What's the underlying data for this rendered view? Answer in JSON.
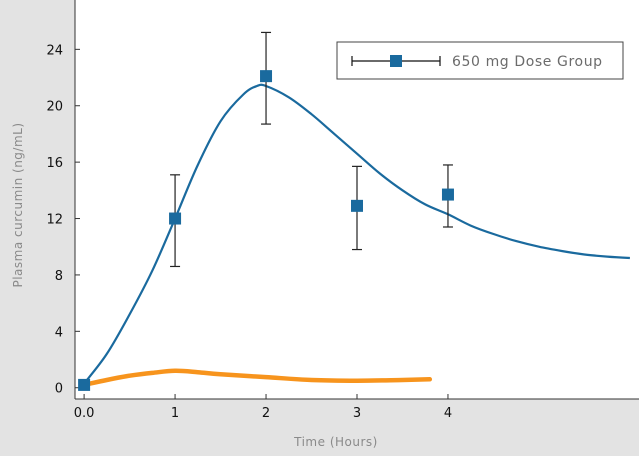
{
  "chart_data": {
    "type": "line",
    "xlabel": "Time (Hours)",
    "ylabel": "Plasma curcumin (ng/mL)",
    "xlim": [
      -0.1,
      6.1
    ],
    "ylim": [
      -0.8,
      27.5
    ],
    "x_ticks": [
      {
        "value": 0,
        "label": "0.0"
      },
      {
        "value": 1,
        "label": "1"
      },
      {
        "value": 2,
        "label": "2"
      },
      {
        "value": 3,
        "label": "3"
      },
      {
        "value": 4,
        "label": "4"
      }
    ],
    "y_ticks": [
      {
        "value": 0,
        "label": "0"
      },
      {
        "value": 4,
        "label": "4"
      },
      {
        "value": 8,
        "label": "8"
      },
      {
        "value": 12,
        "label": "12"
      },
      {
        "value": 16,
        "label": "16"
      },
      {
        "value": 20,
        "label": "20"
      },
      {
        "value": 24,
        "label": "24"
      }
    ],
    "grid": false,
    "legend_position": "top-right",
    "colors": {
      "dose_group": "#1a6a9e",
      "comparison": "#f7941d",
      "error_bar": "#222222",
      "plot_bg": "#ffffff",
      "page_bg": "#e3e3e3",
      "axis": "#333333"
    },
    "series": [
      {
        "name": "650 mg Dose Group",
        "points": [
          {
            "x": 0,
            "y": 0.2,
            "err_low": 0.2,
            "err_high": 0.2
          },
          {
            "x": 1,
            "y": 12.0,
            "err_low": 8.6,
            "err_high": 15.1
          },
          {
            "x": 2,
            "y": 22.1,
            "err_low": 18.7,
            "err_high": 25.2
          },
          {
            "x": 3,
            "y": 12.9,
            "err_low": 9.8,
            "err_high": 15.7
          },
          {
            "x": 4,
            "y": 13.7,
            "err_low": 11.4,
            "err_high": 15.8
          }
        ],
        "fit_curve": [
          [
            0,
            0.3
          ],
          [
            0.25,
            2.4
          ],
          [
            0.5,
            5.2
          ],
          [
            0.75,
            8.3
          ],
          [
            1,
            12.0
          ],
          [
            1.25,
            15.8
          ],
          [
            1.5,
            18.9
          ],
          [
            1.75,
            20.8
          ],
          [
            1.9,
            21.4
          ],
          [
            2.0,
            21.4
          ],
          [
            2.25,
            20.6
          ],
          [
            2.5,
            19.4
          ],
          [
            2.75,
            18.0
          ],
          [
            3,
            16.6
          ],
          [
            3.25,
            15.2
          ],
          [
            3.5,
            14.0
          ],
          [
            3.75,
            13.0
          ],
          [
            4,
            12.3
          ],
          [
            4.25,
            11.5
          ],
          [
            4.5,
            10.9
          ],
          [
            4.75,
            10.4
          ],
          [
            5,
            10.0
          ],
          [
            5.25,
            9.7
          ],
          [
            5.5,
            9.45
          ],
          [
            5.75,
            9.3
          ],
          [
            6.0,
            9.2
          ]
        ]
      },
      {
        "line_points": [
          [
            0,
            0.2
          ],
          [
            0.25,
            0.55
          ],
          [
            0.5,
            0.85
          ],
          [
            0.75,
            1.05
          ],
          [
            1,
            1.2
          ],
          [
            1.25,
            1.1
          ],
          [
            1.5,
            0.95
          ],
          [
            2,
            0.75
          ],
          [
            2.5,
            0.55
          ],
          [
            3,
            0.5
          ],
          [
            3.5,
            0.55
          ],
          [
            3.8,
            0.6
          ]
        ]
      }
    ]
  }
}
